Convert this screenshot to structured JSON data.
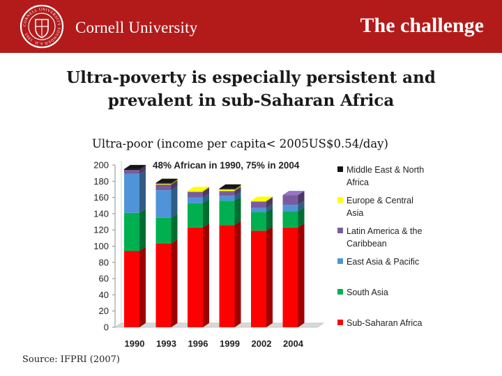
{
  "header": {
    "brand": "Cornell University",
    "slide_title": "The challenge",
    "seal_text": "CORNELL UNIVERSITY FOUNDED A.D. 1865"
  },
  "headline": {
    "line1": "Ultra-poverty is especially persistent and",
    "line2": "prevalent in sub-Saharan Africa"
  },
  "chart_title": "Ultra-poor (income per capita< 2005US$0.54/day)",
  "source": "Source: IFPRI (2007)",
  "chart_data": {
    "type": "bar",
    "stacked": true,
    "style": "3d",
    "annotation": "48% African in 1990, 75% in 2004",
    "categories": [
      "1990",
      "1993",
      "1996",
      "1999",
      "2002",
      "2004"
    ],
    "yticks": [
      0,
      20,
      40,
      60,
      80,
      100,
      120,
      140,
      160,
      180,
      200
    ],
    "ylim": [
      0,
      200
    ],
    "grid": false,
    "legend_position": "right",
    "series": [
      {
        "name": "Sub-Saharan Africa",
        "color": "#ff0000",
        "values": [
          94,
          103,
          123,
          126,
          119,
          123
        ]
      },
      {
        "name": "South Asia",
        "color": "#00b050",
        "values": [
          47,
          32,
          30,
          30,
          23,
          20
        ]
      },
      {
        "name": "East Asia & Pacific",
        "color": "#4f94d8",
        "values": [
          48,
          34,
          7,
          6,
          5,
          8
        ]
      },
      {
        "name": "Latin America & the Caribbean",
        "color": "#7a5c9e",
        "values": [
          5,
          7,
          7,
          6,
          8,
          12
        ]
      },
      {
        "name": "Europe & Central Asia",
        "color": "#ffff00",
        "values": [
          0,
          1,
          1,
          2,
          1,
          0
        ]
      },
      {
        "name": "Middle East & North Africa",
        "color": "#111111",
        "values": [
          1,
          1,
          0,
          1,
          0,
          0
        ]
      }
    ],
    "legend": [
      {
        "label": "Middle East & North Africa",
        "color": "#111111"
      },
      {
        "label": "Europe & Central Asia",
        "color": "#ffff00"
      },
      {
        "label": "Latin America & the Caribbean",
        "color": "#7a5c9e"
      },
      {
        "label": "East Asia & Pacific",
        "color": "#4f94d8"
      },
      {
        "label": "South Asia",
        "color": "#00b050"
      },
      {
        "label": "Sub-Saharan Africa",
        "color": "#ff0000"
      }
    ]
  }
}
